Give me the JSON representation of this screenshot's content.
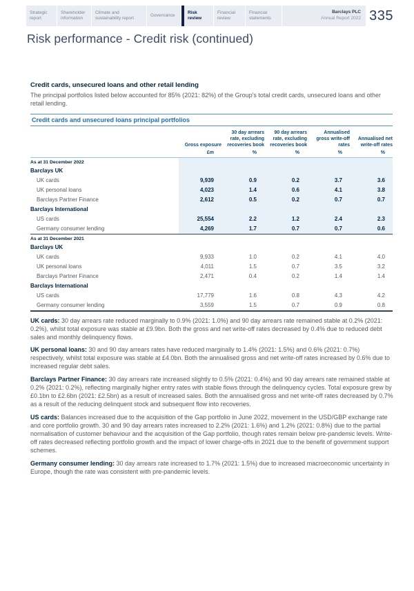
{
  "header": {
    "tabs": [
      {
        "label": "Strategic report"
      },
      {
        "label": "Shareholder information"
      },
      {
        "label": "Climate and sustainability report"
      },
      {
        "label": "Governance"
      },
      {
        "label": "Risk review"
      },
      {
        "label": "Financial review"
      },
      {
        "label": "Financial statements"
      }
    ],
    "brand_line1": "Barclays PLC",
    "brand_line2": "Annual Report 2022",
    "page_number": "335"
  },
  "page_title": "Risk performance - Credit risk (continued)",
  "section": {
    "heading": "Credit cards, unsecured loans and other retail lending",
    "intro": "The principal portfolios listed below accounted for 85% (2021: 82%) of the Group's total credit cards, unsecured loans and other retail lending."
  },
  "table": {
    "title": "Credit cards and unsecured loans principal portfolios",
    "col_headers": [
      "Gross exposure",
      "30 day arrears rate, excluding recoveries book",
      "90 day arrears rate, excluding recoveries book",
      "Annualised gross write-off rates",
      "Annualised net write-off rates"
    ],
    "units": [
      "£m",
      "%",
      "%",
      "%",
      "%"
    ],
    "sections": [
      {
        "period": "As at 31 December 2022",
        "rows": [
          {
            "type": "group",
            "label": "Barclays UK",
            "v": [
              "",
              "",
              "",
              "",
              ""
            ]
          },
          {
            "type": "item",
            "label": "UK cards",
            "v": [
              "9,939",
              "0.9",
              "0.2",
              "3.7",
              "3.6"
            ]
          },
          {
            "type": "item",
            "label": "UK personal loans",
            "v": [
              "4,023",
              "1.4",
              "0.6",
              "4.1",
              "3.8"
            ]
          },
          {
            "type": "item",
            "label": "Barclays Partner Finance",
            "v": [
              "2,612",
              "0.5",
              "0.2",
              "0.7",
              "0.7"
            ]
          },
          {
            "type": "group",
            "label": "Barclays International",
            "v": [
              "",
              "",
              "",
              "",
              ""
            ]
          },
          {
            "type": "item",
            "label": "US cards",
            "v": [
              "25,554",
              "2.2",
              "1.2",
              "2.4",
              "2.3"
            ]
          },
          {
            "type": "item",
            "label": "Germany consumer lending",
            "v": [
              "4,269",
              "1.7",
              "0.7",
              "0.7",
              "0.6"
            ]
          }
        ]
      },
      {
        "period": "As at 31 December 2021",
        "rows": [
          {
            "type": "group",
            "label": "Barclays UK",
            "v": [
              "",
              "",
              "",
              "",
              ""
            ]
          },
          {
            "type": "item",
            "label": "UK cards",
            "v": [
              "9,933",
              "1.0",
              "0.2",
              "4.1",
              "4.0"
            ]
          },
          {
            "type": "item",
            "label": "UK personal loans",
            "v": [
              "4,011",
              "1.5",
              "0.7",
              "3.5",
              "3.2"
            ]
          },
          {
            "type": "item",
            "label": "Barclays Partner Finance",
            "v": [
              "2,471",
              "0.4",
              "0.2",
              "1.4",
              "1.4"
            ]
          },
          {
            "type": "group",
            "label": "Barclays International",
            "v": [
              "",
              "",
              "",
              "",
              ""
            ]
          },
          {
            "type": "item",
            "label": "US cards",
            "v": [
              "17,779",
              "1.6",
              "0.8",
              "4.3",
              "4.2"
            ]
          },
          {
            "type": "item",
            "label": "Germany consumer lending",
            "v": [
              "3,559",
              "1.5",
              "0.7",
              "0.9",
              "0.8"
            ]
          }
        ]
      }
    ]
  },
  "commentary": [
    {
      "lead": "UK cards:",
      "text": " 30 day arrears rate reduced marginally to 0.9% (2021: 1.0%) and 90 day arrears rate remained stable at 0.2% (2021: 0.2%), whilst total exposure was stable at £9.9bn. Both the gross and net write-off rates decreased by 0.4% due to reduced debt sales and monthly delinquency flows."
    },
    {
      "lead": "UK personal loans:",
      "text": " 30 and 90 day arrears rates have reduced marginally to 1.4% (2021: 1.5%) and 0.6% (2021: 0.7%) respectively, whilst total exposure was stable at £4.0bn. Both the annualised gross and net write-off rates increased by 0.6% due to increased regular debt sales."
    },
    {
      "lead": "Barclays Partner Finance:",
      "text": " 30 day arrears rate increased slightly to 0.5% (2021: 0.4%) and 90 day arrears rate remained stable at 0.2% (2021: 0.2%), reflecting marginally higher entry rates with stable flows through the delinquency cycles. Total exposure grew by £0.1bn to £2.6bn (2021: £2.5bn) as a result of increased sales. Both the annualised gross and net write-off rates decreased by 0.7% as a result of the reducing delinquent stock and subsequent flow into recoveries."
    },
    {
      "lead": "US cards:",
      "text": " Balances increased due to the acquisition of the Gap portfolio in June 2022, movement in the USD/GBP exchange rate and core portfolio growth. 30 and 90 day arrears rates increased to 2.2% (2021: 1.6%) and 1.2% (2021: 0.8%) due to the partial normalisation of customer behaviour and the acquisition of the Gap portfolio, though rates remain below pre-pandemic levels. Write-off rates decreased reflecting portfolio growth and the impact of lower charge-offs in 2021 due to the benefit of government support schemes."
    },
    {
      "lead": "Germany consumer lending:",
      "text": " 30 day arrears rate increased to 1.7% (2021: 1.5%) due to increased macroeconomic uncertainty in Europe, though the rate was consistent with pre-pandemic levels."
    }
  ],
  "colors": {
    "accent_navy": "#00233f",
    "table_blue": "#1c70b7",
    "rule_blue": "#4f93ce",
    "shading_blue": "#e8f1f8",
    "band_lavender": "#e9ecf3",
    "dark_rule": "#37424f"
  }
}
